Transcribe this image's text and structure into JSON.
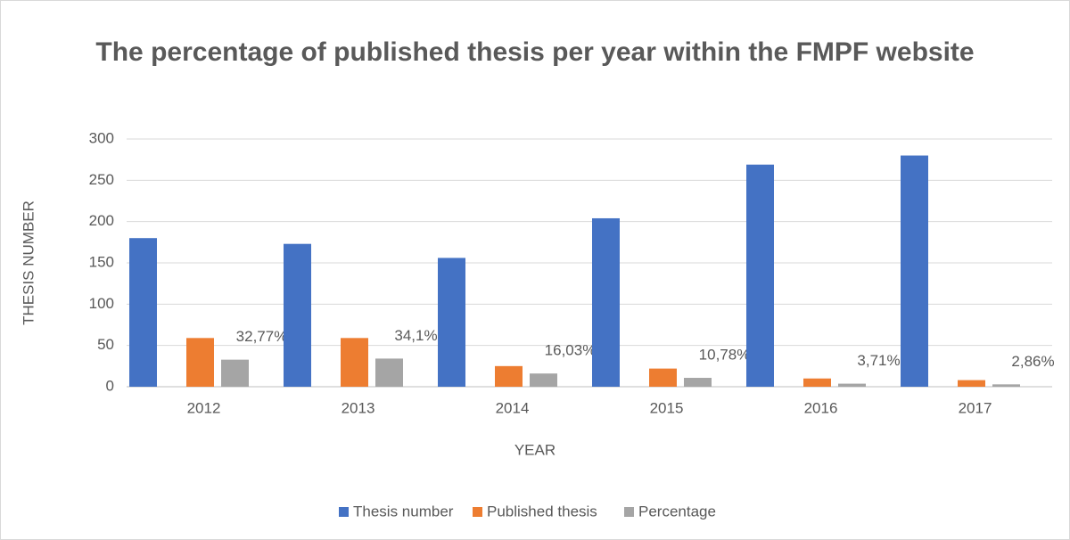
{
  "chart_data": {
    "type": "bar",
    "title": "The percentage of published thesis per year within the FMPF website",
    "xlabel": "YEAR",
    "ylabel": "THESIS NUMBER",
    "categories": [
      "2012",
      "2013",
      "2014",
      "2015",
      "2016",
      "2017"
    ],
    "series": [
      {
        "name": "Thesis number",
        "color": "#4472c4",
        "values": [
          180,
          173,
          156,
          204,
          269,
          280
        ]
      },
      {
        "name": "Published thesis",
        "color": "#ed7d31",
        "values": [
          59,
          59,
          25,
          22,
          10,
          8
        ]
      },
      {
        "name": "Percentage",
        "color": "#a5a5a5",
        "values": [
          32.77,
          34.1,
          16.03,
          10.78,
          3.71,
          2.86
        ],
        "value_labels": [
          "32,77%",
          "34,1%",
          "16,03%",
          "10,78%",
          "3,71%",
          "2,86%"
        ]
      }
    ],
    "ylim": [
      0,
      300
    ],
    "yticks": [
      0,
      50,
      100,
      150,
      200,
      250,
      300
    ],
    "grid": true,
    "legend": "bottom"
  }
}
